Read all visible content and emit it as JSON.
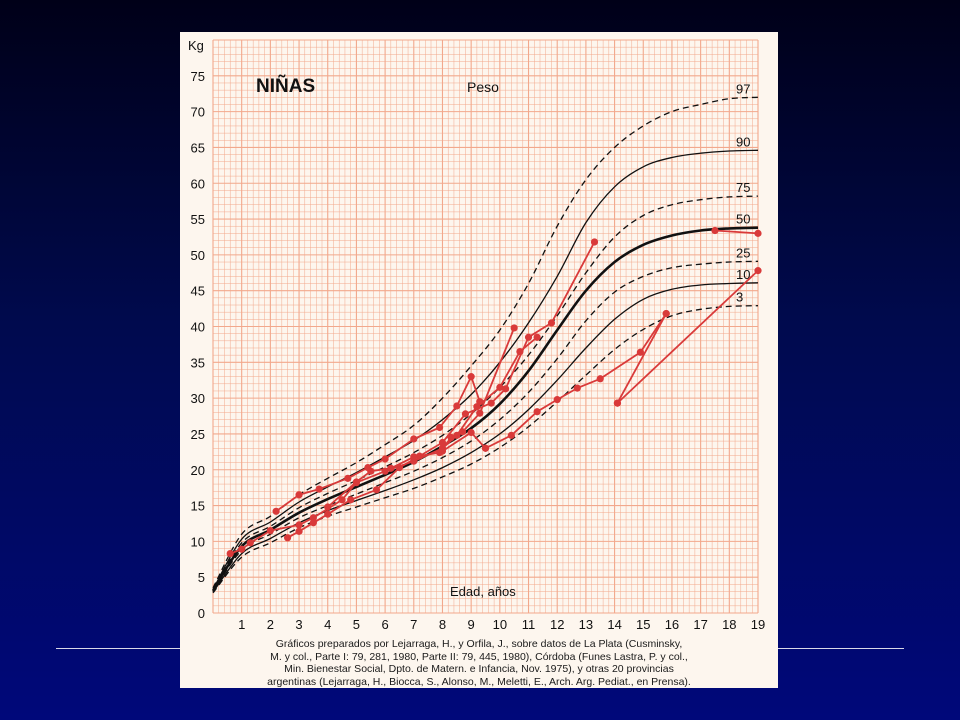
{
  "chart_data": {
    "type": "line",
    "title": "NIÑAS",
    "subtitle": "Peso",
    "ylabel": "Kg",
    "xlabel": "Edad, años",
    "xlim": [
      0,
      19
    ],
    "ylim": [
      0,
      80
    ],
    "x_ticks": [
      1,
      2,
      3,
      4,
      5,
      6,
      7,
      8,
      9,
      10,
      11,
      12,
      13,
      14,
      15,
      16,
      17,
      18,
      19
    ],
    "y_ticks": [
      0,
      5,
      10,
      15,
      20,
      25,
      30,
      35,
      40,
      45,
      50,
      55,
      60,
      65,
      70,
      75
    ],
    "grid": true,
    "colors": {
      "grid": "#f2a88c",
      "percentile": "#111111",
      "patient": "#d93a3a"
    },
    "percentiles": [
      {
        "name": "97",
        "style": "dashed",
        "points": [
          [
            0,
            3.5
          ],
          [
            1,
            11
          ],
          [
            2,
            13.5
          ],
          [
            3,
            16.5
          ],
          [
            4,
            18.8
          ],
          [
            5,
            21
          ],
          [
            6,
            23.5
          ],
          [
            7,
            26.2
          ],
          [
            8,
            30
          ],
          [
            9,
            34.5
          ],
          [
            10,
            39.5
          ],
          [
            11,
            46
          ],
          [
            12,
            54
          ],
          [
            13,
            60.5
          ],
          [
            14,
            65
          ],
          [
            15,
            68
          ],
          [
            16,
            70
          ],
          [
            17,
            71
          ],
          [
            18,
            71.8
          ],
          [
            19,
            72
          ]
        ]
      },
      {
        "name": "90",
        "style": "solid",
        "points": [
          [
            0,
            3.3
          ],
          [
            1,
            10.3
          ],
          [
            2,
            12.7
          ],
          [
            3,
            15.5
          ],
          [
            4,
            17.6
          ],
          [
            5,
            19.6
          ],
          [
            6,
            21.8
          ],
          [
            7,
            24.1
          ],
          [
            8,
            27
          ],
          [
            9,
            30.5
          ],
          [
            10,
            35
          ],
          [
            11,
            40.5
          ],
          [
            12,
            47
          ],
          [
            13,
            54.5
          ],
          [
            14,
            59.5
          ],
          [
            15,
            62.3
          ],
          [
            16,
            63.6
          ],
          [
            17,
            64.2
          ],
          [
            18,
            64.5
          ],
          [
            19,
            64.6
          ]
        ]
      },
      {
        "name": "75",
        "style": "dashed",
        "points": [
          [
            0,
            3.2
          ],
          [
            1,
            9.8
          ],
          [
            2,
            12.1
          ],
          [
            3,
            14.7
          ],
          [
            4,
            16.7
          ],
          [
            5,
            18.5
          ],
          [
            6,
            20.4
          ],
          [
            7,
            22.4
          ],
          [
            8,
            24.8
          ],
          [
            9,
            27.8
          ],
          [
            10,
            31.5
          ],
          [
            11,
            36
          ],
          [
            12,
            41.5
          ],
          [
            13,
            47.5
          ],
          [
            14,
            52.5
          ],
          [
            15,
            55.5
          ],
          [
            16,
            57
          ],
          [
            17,
            57.7
          ],
          [
            18,
            58.1
          ],
          [
            19,
            58.2
          ]
        ]
      },
      {
        "name": "50",
        "style": "bold",
        "points": [
          [
            0,
            3.1
          ],
          [
            1,
            9.3
          ],
          [
            2,
            11.6
          ],
          [
            3,
            14
          ],
          [
            4,
            15.9
          ],
          [
            5,
            17.6
          ],
          [
            6,
            19.3
          ],
          [
            7,
            21.1
          ],
          [
            8,
            23.3
          ],
          [
            9,
            25.8
          ],
          [
            10,
            29.2
          ],
          [
            11,
            33.8
          ],
          [
            12,
            39.5
          ],
          [
            13,
            45
          ],
          [
            14,
            49
          ],
          [
            15,
            51.4
          ],
          [
            16,
            52.7
          ],
          [
            17,
            53.4
          ],
          [
            18,
            53.7
          ],
          [
            19,
            53.8
          ]
        ]
      },
      {
        "name": "25",
        "style": "dashed",
        "points": [
          [
            0,
            3
          ],
          [
            1,
            8.8
          ],
          [
            2,
            11
          ],
          [
            3,
            13.3
          ],
          [
            4,
            15
          ],
          [
            5,
            16.6
          ],
          [
            6,
            18.2
          ],
          [
            7,
            19.8
          ],
          [
            8,
            21.7
          ],
          [
            9,
            24
          ],
          [
            10,
            27
          ],
          [
            11,
            30.8
          ],
          [
            12,
            35.5
          ],
          [
            13,
            40.8
          ],
          [
            14,
            44.8
          ],
          [
            15,
            47
          ],
          [
            16,
            48.2
          ],
          [
            17,
            48.7
          ],
          [
            18,
            49
          ],
          [
            19,
            49.1
          ]
        ]
      },
      {
        "name": "10",
        "style": "solid",
        "points": [
          [
            0,
            2.9
          ],
          [
            1,
            8.3
          ],
          [
            2,
            10.4
          ],
          [
            3,
            12.6
          ],
          [
            4,
            14.3
          ],
          [
            5,
            15.7
          ],
          [
            6,
            17.1
          ],
          [
            7,
            18.6
          ],
          [
            8,
            20.3
          ],
          [
            9,
            22.4
          ],
          [
            10,
            25
          ],
          [
            11,
            28.4
          ],
          [
            12,
            32.5
          ],
          [
            13,
            37
          ],
          [
            14,
            41
          ],
          [
            15,
            43.8
          ],
          [
            16,
            45.2
          ],
          [
            17,
            45.8
          ],
          [
            18,
            46
          ],
          [
            19,
            46.1
          ]
        ]
      },
      {
        "name": "3",
        "style": "dashed",
        "points": [
          [
            0,
            2.8
          ],
          [
            1,
            7.8
          ],
          [
            2,
            9.8
          ],
          [
            3,
            11.9
          ],
          [
            4,
            13.5
          ],
          [
            5,
            14.8
          ],
          [
            6,
            16.1
          ],
          [
            7,
            17.4
          ],
          [
            8,
            19
          ],
          [
            9,
            20.8
          ],
          [
            10,
            23.1
          ],
          [
            11,
            26
          ],
          [
            12,
            29.5
          ],
          [
            13,
            33.2
          ],
          [
            14,
            36.8
          ],
          [
            15,
            39.6
          ],
          [
            16,
            41.5
          ],
          [
            17,
            42.4
          ],
          [
            18,
            42.8
          ],
          [
            19,
            42.9
          ]
        ]
      }
    ],
    "patients": [
      [
        [
          0.6,
          8.3
        ],
        [
          1,
          8.9
        ],
        [
          1.3,
          9.8
        ],
        [
          2,
          11.5
        ],
        [
          3,
          12.3
        ],
        [
          3.5,
          13.3
        ],
        [
          4.5,
          15.8
        ],
        [
          5,
          18.2
        ],
        [
          6,
          19.8
        ],
        [
          7,
          21.2
        ],
        [
          8,
          23
        ],
        [
          8.5,
          24.8
        ],
        [
          9.2,
          28.8
        ],
        [
          10,
          31.5
        ],
        [
          10.7,
          36.5
        ],
        [
          11.3,
          38.5
        ]
      ],
      [
        [
          2.2,
          14.2
        ],
        [
          3,
          16.5
        ],
        [
          3.7,
          17.3
        ],
        [
          4.7,
          18.8
        ],
        [
          5.4,
          20.3
        ],
        [
          6,
          21.5
        ],
        [
          7,
          24.3
        ],
        [
          7.9,
          25.9
        ],
        [
          8.5,
          28.9
        ],
        [
          9,
          33
        ],
        [
          9.3,
          29.5
        ]
      ],
      [
        [
          2.6,
          10.5
        ],
        [
          3,
          11.4
        ],
        [
          3.5,
          12.6
        ],
        [
          4,
          13.8
        ],
        [
          4.8,
          15.8
        ],
        [
          5.7,
          17.2
        ],
        [
          6.5,
          20.3
        ],
        [
          7.2,
          21.9
        ],
        [
          8,
          23.8
        ],
        [
          8.8,
          27.8
        ],
        [
          9.7,
          29.3
        ],
        [
          10.2,
          31.3
        ],
        [
          11,
          38.5
        ],
        [
          11.8,
          40.5
        ],
        [
          13.3,
          51.8
        ]
      ],
      [
        [
          4,
          14.8
        ],
        [
          5,
          18.3
        ],
        [
          5.5,
          19.8
        ],
        [
          6.2,
          20.2
        ],
        [
          7,
          21.8
        ],
        [
          7.9,
          22.4
        ],
        [
          8.3,
          24.5
        ],
        [
          8.7,
          25.3
        ],
        [
          9.3,
          27.9
        ],
        [
          10.5,
          39.8
        ]
      ],
      [
        [
          8,
          22.6
        ],
        [
          9,
          25.2
        ],
        [
          9.5,
          23
        ]
      ],
      [
        [
          9.5,
          23
        ],
        [
          10.4,
          24.8
        ],
        [
          11.3,
          28.1
        ],
        [
          12,
          29.8
        ],
        [
          12.7,
          31.4
        ],
        [
          13.5,
          32.7
        ],
        [
          14.9,
          36.4
        ],
        [
          15.8,
          41.8
        ]
      ],
      [
        [
          14.1,
          29.3
        ],
        [
          15.8,
          41.8
        ]
      ],
      [
        [
          14.1,
          29.3
        ],
        [
          19,
          47.8
        ]
      ],
      [
        [
          17.5,
          53.4
        ],
        [
          19,
          53
        ]
      ]
    ]
  },
  "caption": [
    "Gráficos preparados por Lejarraga, H., y Orfila, J., sobre datos de La Plata (Cusminsky,",
    "M. y col., Parte I: 79, 281, 1980, Parte II: 79, 445, 1980), Córdoba (Funes Lastra, P. y col.,",
    "Min. Bienestar Social, Dpto. de Matern. e Infancia, Nov. 1975), y otras 20 provincias",
    "argentinas (Lejarraga, H., Biocca, S., Alonso, M., Meletti, E., Arch. Arg. Pediat., en Prensa)."
  ]
}
